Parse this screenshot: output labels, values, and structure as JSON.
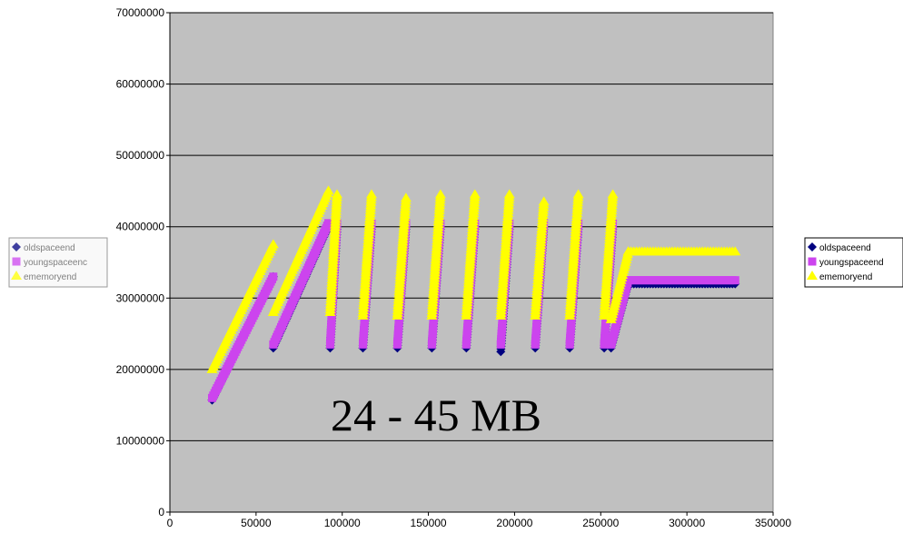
{
  "chart_data": {
    "type": "scatter",
    "xlim": [
      0,
      350000
    ],
    "ylim": [
      0,
      70000000
    ],
    "x_ticks": [
      "0",
      "50000",
      "100000",
      "150000",
      "200000",
      "250000",
      "300000",
      "350000"
    ],
    "y_ticks": [
      "0",
      "10000000",
      "20000000",
      "30000000",
      "40000000",
      "50000000",
      "60000000",
      "70000000"
    ],
    "y_ticks_display": [
      "0",
      "10000000",
      "20000000",
      "30000000",
      "40000000",
      "50000000",
      "60000000",
      "70000000"
    ],
    "plot_background": "#c0c0c0",
    "grid": "horizontal",
    "legend": {
      "placement": "right",
      "entries": [
        "oldspaceend",
        "youngspaceend",
        "ememoryend"
      ]
    },
    "ghost_legend": {
      "placement": "left",
      "entries": [
        "oldspaceend",
        "youngspaceenc",
        "ememoryend"
      ]
    },
    "annotation": "24 - 45 MB",
    "series": [
      {
        "name": "oldspaceend",
        "color": "#000080",
        "marker": "diamond",
        "segments": [
          {
            "x0": 24500,
            "x1": 60000,
            "y0": 15700000,
            "y1": 33000000
          },
          {
            "x0": 60000,
            "x1": 92000,
            "y0": 23000000,
            "y1": 40000000
          },
          {
            "x0": 93000,
            "x1": 97000,
            "y0": 23000000,
            "y1": 40000000
          },
          {
            "x0": 112000,
            "x1": 117000,
            "y0": 23000000,
            "y1": 40000000
          },
          {
            "x0": 132000,
            "x1": 137000,
            "y0": 23000000,
            "y1": 40000000
          },
          {
            "x0": 152000,
            "x1": 157000,
            "y0": 23000000,
            "y1": 40000000
          },
          {
            "x0": 172000,
            "x1": 177000,
            "y0": 23000000,
            "y1": 40000000
          },
          {
            "x0": 192000,
            "x1": 197000,
            "y0": 22500000,
            "y1": 40000000
          },
          {
            "x0": 212000,
            "x1": 217000,
            "y0": 23000000,
            "y1": 40000000
          },
          {
            "x0": 232000,
            "x1": 237000,
            "y0": 23000000,
            "y1": 40000000
          },
          {
            "x0": 252000,
            "x1": 257000,
            "y0": 23000000,
            "y1": 40000000
          },
          {
            "x0": 256000,
            "x1": 266000,
            "y0": 23000000,
            "y1": 32000000
          },
          {
            "x0": 266000,
            "x1": 328000,
            "y0": 32000000,
            "y1": 32000000
          }
        ]
      },
      {
        "name": "youngspaceend",
        "color": "#cc44ee",
        "marker": "square",
        "segments": [
          {
            "x0": 24500,
            "x1": 60000,
            "y0": 16000000,
            "y1": 33000000
          },
          {
            "x0": 60000,
            "x1": 92000,
            "y0": 23500000,
            "y1": 40500000
          },
          {
            "x0": 93000,
            "x1": 97000,
            "y0": 23500000,
            "y1": 40500000
          },
          {
            "x0": 112000,
            "x1": 117000,
            "y0": 23500000,
            "y1": 40500000
          },
          {
            "x0": 132000,
            "x1": 137000,
            "y0": 23500000,
            "y1": 40500000
          },
          {
            "x0": 152000,
            "x1": 157000,
            "y0": 23500000,
            "y1": 40500000
          },
          {
            "x0": 172000,
            "x1": 177000,
            "y0": 23500000,
            "y1": 40500000
          },
          {
            "x0": 192000,
            "x1": 197000,
            "y0": 23500000,
            "y1": 40500000
          },
          {
            "x0": 212000,
            "x1": 217000,
            "y0": 23500000,
            "y1": 40500000
          },
          {
            "x0": 232000,
            "x1": 237000,
            "y0": 23500000,
            "y1": 40500000
          },
          {
            "x0": 252000,
            "x1": 257000,
            "y0": 23500000,
            "y1": 40500000
          },
          {
            "x0": 256000,
            "x1": 266000,
            "y0": 23500000,
            "y1": 32500000
          },
          {
            "x0": 266000,
            "x1": 328000,
            "y0": 32500000,
            "y1": 32500000
          }
        ]
      },
      {
        "name": "ememoryend",
        "color": "#ffff00",
        "marker": "triangle",
        "segments": [
          {
            "x0": 24500,
            "x1": 60000,
            "y0": 20000000,
            "y1": 37500000
          },
          {
            "x0": 60000,
            "x1": 92000,
            "y0": 28000000,
            "y1": 45000000
          },
          {
            "x0": 93000,
            "x1": 97000,
            "y0": 28000000,
            "y1": 44500000
          },
          {
            "x0": 112000,
            "x1": 117000,
            "y0": 27500000,
            "y1": 44500000
          },
          {
            "x0": 132000,
            "x1": 137000,
            "y0": 27500000,
            "y1": 44000000
          },
          {
            "x0": 152000,
            "x1": 157000,
            "y0": 27500000,
            "y1": 44500000
          },
          {
            "x0": 172000,
            "x1": 177000,
            "y0": 27500000,
            "y1": 44500000
          },
          {
            "x0": 192000,
            "x1": 197000,
            "y0": 27500000,
            "y1": 44500000
          },
          {
            "x0": 212000,
            "x1": 217000,
            "y0": 27500000,
            "y1": 43500000
          },
          {
            "x0": 232000,
            "x1": 237000,
            "y0": 27500000,
            "y1": 44500000
          },
          {
            "x0": 252000,
            "x1": 257000,
            "y0": 27500000,
            "y1": 44500000
          },
          {
            "x0": 256000,
            "x1": 266000,
            "y0": 27000000,
            "y1": 36500000
          },
          {
            "x0": 266000,
            "x1": 328000,
            "y0": 36500000,
            "y1": 36500000
          }
        ]
      }
    ]
  }
}
